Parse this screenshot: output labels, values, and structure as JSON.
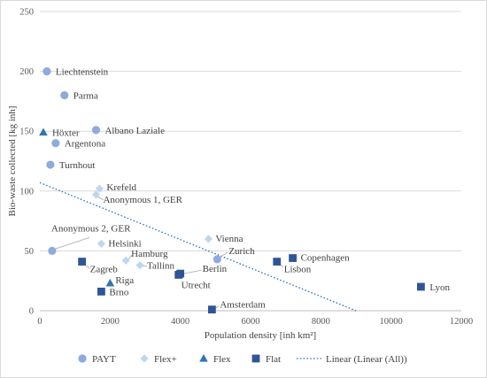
{
  "chart_data": {
    "type": "scatter",
    "xlabel": "Population density [inh km²]",
    "ylabel": "Bio-waste collected [kg inh]",
    "xlim": [
      0,
      12000
    ],
    "ylim": [
      0,
      250
    ],
    "x_ticks": [
      0,
      2000,
      4000,
      6000,
      8000,
      10000,
      12000
    ],
    "y_ticks": [
      0,
      50,
      100,
      150,
      200,
      250
    ],
    "grid": "horizontal",
    "legend_placement": "bottom",
    "series": [
      {
        "name": "PAYT",
        "marker": "circle",
        "color": "#8faadc",
        "points": [
          {
            "label": "Liechtenstein",
            "x": 200,
            "y": 200
          },
          {
            "label": "Parma",
            "x": 700,
            "y": 180
          },
          {
            "label": "Albano Laziale",
            "x": 1600,
            "y": 151
          },
          {
            "label": "Argentona",
            "x": 450,
            "y": 140
          },
          {
            "label": "Turnhout",
            "x": 300,
            "y": 122
          },
          {
            "label": "Anonymous 2, GER",
            "x": 350,
            "y": 50
          },
          {
            "label": "Zurich",
            "x": 5050,
            "y": 43
          }
        ]
      },
      {
        "name": "Flex+",
        "marker": "diamond",
        "color": "#bdd7ee",
        "points": [
          {
            "label": "Krefeld",
            "x": 1700,
            "y": 102
          },
          {
            "label": "Anonymous 1, GER",
            "x": 1600,
            "y": 97
          },
          {
            "label": "Helsinki",
            "x": 1750,
            "y": 56
          },
          {
            "label": "Vienna",
            "x": 4800,
            "y": 60
          },
          {
            "label": "Hamburg",
            "x": 2450,
            "y": 42
          },
          {
            "label": "Tallinn",
            "x": 2850,
            "y": 38
          }
        ]
      },
      {
        "name": "Flex",
        "marker": "triangle",
        "color": "#2e75b6",
        "points": [
          {
            "label": "Höxter",
            "x": 100,
            "y": 149
          },
          {
            "label": "Riga",
            "x": 2000,
            "y": 23
          }
        ]
      },
      {
        "name": "Flat",
        "marker": "square",
        "color": "#2f5597",
        "points": [
          {
            "label": "Zagreb",
            "x": 1200,
            "y": 41
          },
          {
            "label": "Brno",
            "x": 1750,
            "y": 16
          },
          {
            "label": "Berlin",
            "x": 4000,
            "y": 31
          },
          {
            "label": "Utrecht",
            "x": 3950,
            "y": 30
          },
          {
            "label": "Copenhagen",
            "x": 7200,
            "y": 44
          },
          {
            "label": "Lisbon",
            "x": 6750,
            "y": 41
          },
          {
            "label": "Amsterdam",
            "x": 4900,
            "y": 1
          },
          {
            "label": "Lyon",
            "x": 10850,
            "y": 20
          }
        ]
      }
    ],
    "trendline": {
      "name": "Linear (Linear (All))",
      "style": "dotted",
      "color": "#2e75b6",
      "x_start": 0,
      "y_start": 107,
      "x_end": 9000,
      "y_end": 0
    }
  },
  "legend": [
    {
      "label": "PAYT",
      "marker": "circle",
      "color": "#8faadc"
    },
    {
      "label": "Flex+",
      "marker": "diamond",
      "color": "#bdd7ee"
    },
    {
      "label": "Flex",
      "marker": "triangle",
      "color": "#2e75b6"
    },
    {
      "label": "Flat",
      "marker": "square",
      "color": "#2f5597"
    },
    {
      "label": "Linear (Linear (All))",
      "marker": "dotted-line",
      "color": "#2e75b6"
    }
  ]
}
